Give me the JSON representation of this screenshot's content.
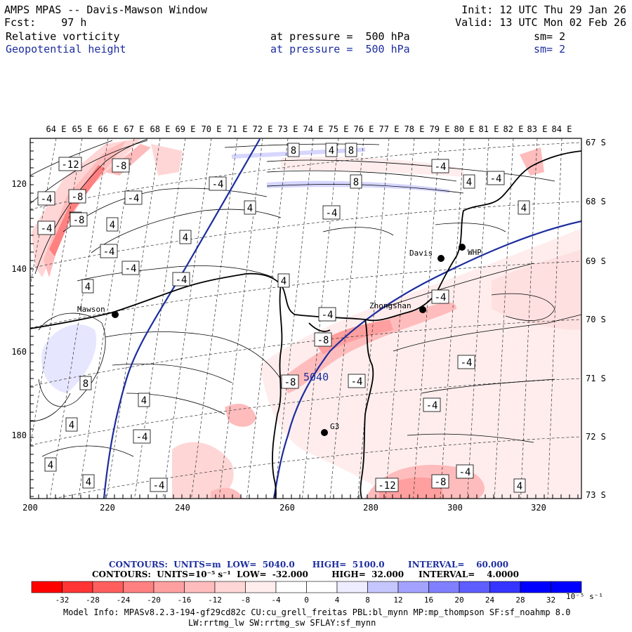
{
  "header": {
    "title": "AMPS MPAS -- Davis-Mawson Window",
    "fcst_label": "Fcst:",
    "fcst_value": "97 h",
    "init": "Init: 12 UTC Thu 29 Jan 26",
    "valid": "Valid: 13 UTC Mon 02 Feb 26",
    "field1": "Relative vorticity",
    "field1_pressure": "at pressure =  500 hPa",
    "field1_sm": "sm= 2",
    "field2": "Geopotential height",
    "field2_pressure": "at pressure =  500 hPa",
    "field2_sm": "sm= 2"
  },
  "map": {
    "top_lon_labels": [
      "64 E",
      "65 E",
      "66 E",
      "67 E",
      "68 E",
      "69 E",
      "70 E",
      "71 E",
      "72 E",
      "73 E",
      "74 E",
      "75 E",
      "76 E",
      "77 E",
      "78 E",
      "79 E",
      "80 E",
      "81 E",
      "82 E",
      "83 E",
      "84 E"
    ],
    "right_lat_labels": [
      "67 S",
      "68 S",
      "69 S",
      "70 S",
      "71 S",
      "72 S",
      "73 S"
    ],
    "left_ticks": [
      "120",
      "140",
      "160",
      "180"
    ],
    "bottom_ticks": [
      "200",
      "220",
      "240",
      "260",
      "280",
      "300",
      "320"
    ],
    "stations": [
      {
        "name": "Davis"
      },
      {
        "name": "WHP"
      },
      {
        "name": "Mawson"
      },
      {
        "name": "Zhongshan"
      },
      {
        "name": "G3"
      }
    ],
    "height_contour_label": "5040",
    "vort_labels": [
      "-12",
      "-8",
      "-4",
      "-8",
      "-4",
      "4",
      "-4",
      "-8",
      "-4",
      "4",
      "4",
      "4",
      "-4",
      "-4",
      "4",
      "4",
      "8",
      "4",
      "8",
      "8",
      "4",
      "-4",
      "-4",
      "4",
      "-4",
      "-4",
      "-4",
      "-8",
      "-4",
      "8",
      "-4",
      "-8",
      "4",
      "4",
      "-4",
      "-4",
      "4",
      "-4",
      "4",
      "-4",
      "-12",
      "-8",
      "-4",
      "4"
    ]
  },
  "footer": {
    "contours1": "CONTOURS:  UNITS=m  LOW=  5040.0      HIGH=  5100.0        INTERVAL=    60.000",
    "contours2": "CONTOURS:  UNITS=10⁻⁵ s⁻¹  LOW=  -32.000        HIGH=  32.000     INTERVAL=    4.0000",
    "colorbar_ticks": [
      "-32",
      "-28",
      "-24",
      "-20",
      "-16",
      "-12",
      "-8",
      "-4",
      "0",
      "4",
      "8",
      "12",
      "16",
      "20",
      "24",
      "28",
      "32"
    ],
    "colorbar_unit": "10⁻⁵ s⁻¹",
    "colorbar_colors": [
      "#ff0000",
      "#ff3535",
      "#ff5e5e",
      "#ff8080",
      "#ffa0a0",
      "#ffbcbc",
      "#ffd6d6",
      "#ffeded",
      "#ffffff",
      "#ffffff",
      "#ededff",
      "#c6c6ff",
      "#a3a3ff",
      "#8080ff",
      "#5e5eff",
      "#3535ff",
      "#0000ff",
      "#0000ff"
    ],
    "model_info": "Model Info: MPASv8.2.3-194-gf29cd82c CU:cu_grell_freitas PBL:bl_mynn MP:mp_thompson SF:sf_noahmp 8.0",
    "model_info2": "LW:rrtmg_lw SW:rrtmg_sw SFLAY:sf_mynn"
  }
}
